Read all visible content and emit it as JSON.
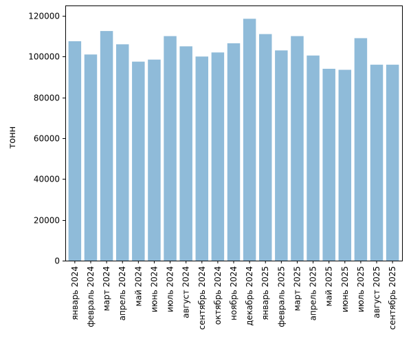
{
  "chart_data": {
    "type": "bar",
    "categories": [
      "январь 2024",
      "февраль 2024",
      "март 2024",
      "апрель 2024",
      "май 2024",
      "июнь 2024",
      "июль 2024",
      "август 2024",
      "сентябрь 2024",
      "октябрь 2024",
      "ноябрь 2024",
      "декабрь 2024",
      "январь 2025",
      "февраль 2025",
      "март 2025",
      "апрель 2025",
      "май 2025",
      "июнь 2025",
      "июль 2025",
      "август 2025",
      "сентябрь 2025"
    ],
    "values": [
      107500,
      101000,
      112500,
      106000,
      97500,
      98500,
      110000,
      105000,
      100000,
      102000,
      106500,
      118500,
      111000,
      103000,
      110000,
      100500,
      94000,
      93500,
      109000,
      96000,
      96000
    ],
    "title": "",
    "xlabel": "",
    "ylabel": "тонн",
    "ylim": [
      0,
      125000
    ],
    "yticks": [
      0,
      20000,
      40000,
      60000,
      80000,
      100000,
      120000
    ],
    "bar_color": "#8fbbd9",
    "grid": false,
    "legend": "none"
  }
}
